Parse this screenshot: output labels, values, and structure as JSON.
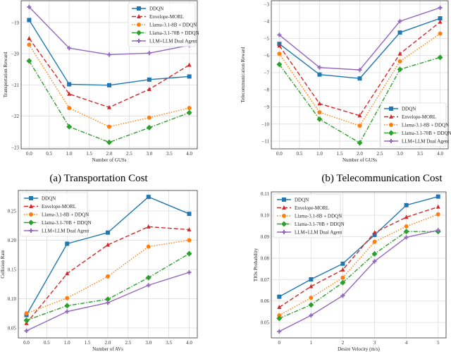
{
  "colors": {
    "DDQN": "#1f77b4",
    "Envelope-MORL": "#d62728",
    "Llama-3.1-8B + DDQN": "#ff7f0e",
    "Llama-3.1-70B + DDQN": "#2ca02c",
    "LLM+LLM Dual Agent": "#9467bd"
  },
  "captions": {
    "a": "(a) Transportation Cost",
    "b": "(b) Telecommunication Cost"
  },
  "chart_data": [
    {
      "type": "line",
      "xlabel": "Number of GUSs",
      "ylabel": "Transportation Reward",
      "x": [
        0,
        1,
        2,
        3,
        4
      ],
      "xlim": [
        -0.2,
        4.2
      ],
      "ylim": [
        -23.05,
        -18.3
      ],
      "xticks": [
        0,
        0.5,
        1,
        1.5,
        2,
        2.5,
        3,
        3.5,
        4
      ],
      "xtick_labels": [
        "0.0",
        "0.5",
        "1.0",
        "1.5",
        "2.0",
        "2.5",
        "3.0",
        "3.5",
        "4.0"
      ],
      "yticks": [
        -19,
        -20,
        -21,
        -22,
        -23
      ],
      "ytick_labels": [
        "−19",
        "−20",
        "−21",
        "−22",
        "−23"
      ],
      "grid": true,
      "legend": "top-right",
      "series": [
        {
          "name": "DDQN",
          "values": [
            -18.92,
            -20.98,
            -21.01,
            -20.83,
            -20.73
          ]
        },
        {
          "name": "Envelope-MORL",
          "values": [
            -19.51,
            -21.29,
            -21.72,
            -21.14,
            -20.36
          ]
        },
        {
          "name": "Llama-3.1-8B + DDQN",
          "values": [
            -19.71,
            -21.74,
            -22.34,
            -22.05,
            -21.74
          ]
        },
        {
          "name": "Llama-3.1-70B + DDQN",
          "values": [
            -20.23,
            -22.34,
            -22.84,
            -22.37,
            -21.89
          ]
        },
        {
          "name": "LLM+LLM Dual Agent",
          "values": [
            -18.5,
            -19.82,
            -20.03,
            -19.98,
            -19.73
          ]
        }
      ]
    },
    {
      "type": "line",
      "xlabel": "Number of GUSs",
      "ylabel": "Telecommunication Reward",
      "x": [
        0,
        1,
        2,
        3,
        4
      ],
      "xlim": [
        -0.2,
        4.2
      ],
      "ylim": [
        -11.45,
        -2.8
      ],
      "xticks": [
        0,
        0.5,
        1,
        1.5,
        2,
        2.5,
        3,
        3.5,
        4
      ],
      "xtick_labels": [
        "0.0",
        "0.5",
        "1.0",
        "1.5",
        "2.0",
        "2.5",
        "3.0",
        "3.5",
        "4.0"
      ],
      "yticks": [
        -3,
        -4,
        -5,
        -6,
        -7,
        -8,
        -9,
        -10,
        -11
      ],
      "ytick_labels": [
        "−3",
        "−4",
        "−5",
        "−6",
        "−7",
        "−8",
        "−9",
        "−10",
        "−11"
      ],
      "grid": true,
      "legend": "bottom-right",
      "series": [
        {
          "name": "DDQN",
          "values": [
            -5.32,
            -7.11,
            -7.34,
            -4.66,
            -3.83
          ]
        },
        {
          "name": "Envelope-MORL",
          "values": [
            -5.43,
            -8.81,
            -9.51,
            -5.9,
            -4.04
          ]
        },
        {
          "name": "Llama-3.1-8B + DDQN",
          "values": [
            -5.9,
            -9.32,
            -10.1,
            -6.34,
            -4.72
          ]
        },
        {
          "name": "Llama-3.1-70B + DDQN",
          "values": [
            -6.52,
            -9.72,
            -11.1,
            -6.81,
            -6.11
          ]
        },
        {
          "name": "LLM+LLM Dual Agent",
          "values": [
            -4.8,
            -6.7,
            -6.84,
            -4.0,
            -3.21
          ]
        }
      ]
    },
    {
      "type": "line",
      "xlabel": "Number of AVs",
      "ylabel": "Collision Rate",
      "x": [
        0,
        1,
        2,
        3,
        4
      ],
      "xlim": [
        -0.2,
        4.2
      ],
      "ylim": [
        0.033,
        0.285
      ],
      "xticks": [
        0,
        0.5,
        1,
        1.5,
        2,
        2.5,
        3,
        3.5,
        4
      ],
      "xtick_labels": [
        "0.0",
        "0.5",
        "1.0",
        "1.5",
        "2.0",
        "2.5",
        "3.0",
        "3.5",
        "4.0"
      ],
      "yticks": [
        0.05,
        0.1,
        0.15,
        0.2,
        0.25
      ],
      "ytick_labels": [
        "0.05",
        "0.10",
        "0.15",
        "0.20",
        "0.25"
      ],
      "grid": true,
      "legend": "top-left",
      "series": [
        {
          "name": "DDQN",
          "values": [
            0.072,
            0.194,
            0.213,
            0.274,
            0.245
          ]
        },
        {
          "name": "Envelope-MORL",
          "values": [
            0.058,
            0.143,
            0.192,
            0.223,
            0.218
          ]
        },
        {
          "name": "Llama-3.1-8B + DDQN",
          "values": [
            0.075,
            0.101,
            0.138,
            0.189,
            0.2
          ]
        },
        {
          "name": "Llama-3.1-70B + DDQN",
          "values": [
            0.063,
            0.088,
            0.099,
            0.136,
            0.177
          ]
        },
        {
          "name": "LLM+LLM Dual Agent",
          "values": [
            0.045,
            0.078,
            0.093,
            0.123,
            0.145
          ]
        }
      ]
    },
    {
      "type": "line",
      "xlabel": "Desire Velocity (m/s)",
      "ylabel": "TIOs Probability",
      "x": [
        0,
        1,
        2,
        3,
        4,
        5
      ],
      "xlim": [
        -0.25,
        5.25
      ],
      "ylim": [
        0.0428,
        0.1109
      ],
      "xticks": [
        0,
        1,
        2,
        3,
        4,
        5
      ],
      "xtick_labels": [
        "0",
        "1",
        "2",
        "3",
        "4",
        "5"
      ],
      "yticks": [
        0.05,
        0.06,
        0.07,
        0.08,
        0.09,
        0.1,
        0.11
      ],
      "ytick_labels": [
        "0.05",
        "0.06",
        "0.07",
        "0.08",
        "0.09",
        "0.10",
        "0.11"
      ],
      "grid": true,
      "legend": "top-left",
      "series": [
        {
          "name": "DDQN",
          "values": [
            0.062,
            0.0701,
            0.0774,
            0.0908,
            0.1047,
            0.1087
          ]
        },
        {
          "name": "Envelope-MORL",
          "values": [
            0.0571,
            0.0668,
            0.0746,
            0.0919,
            0.0991,
            0.1039
          ]
        },
        {
          "name": "Llama-3.1-8B + DDQN",
          "values": [
            0.0533,
            0.0615,
            0.0709,
            0.0876,
            0.0948,
            0.1004
          ]
        },
        {
          "name": "Llama-3.1-70B + DDQN",
          "values": [
            0.0519,
            0.0582,
            0.0686,
            0.082,
            0.0924,
            0.0924
          ]
        },
        {
          "name": "LLM+LLM Dual Agent",
          "values": [
            0.0458,
            0.0533,
            0.0625,
            0.0785,
            0.0897,
            0.093
          ]
        }
      ]
    }
  ]
}
